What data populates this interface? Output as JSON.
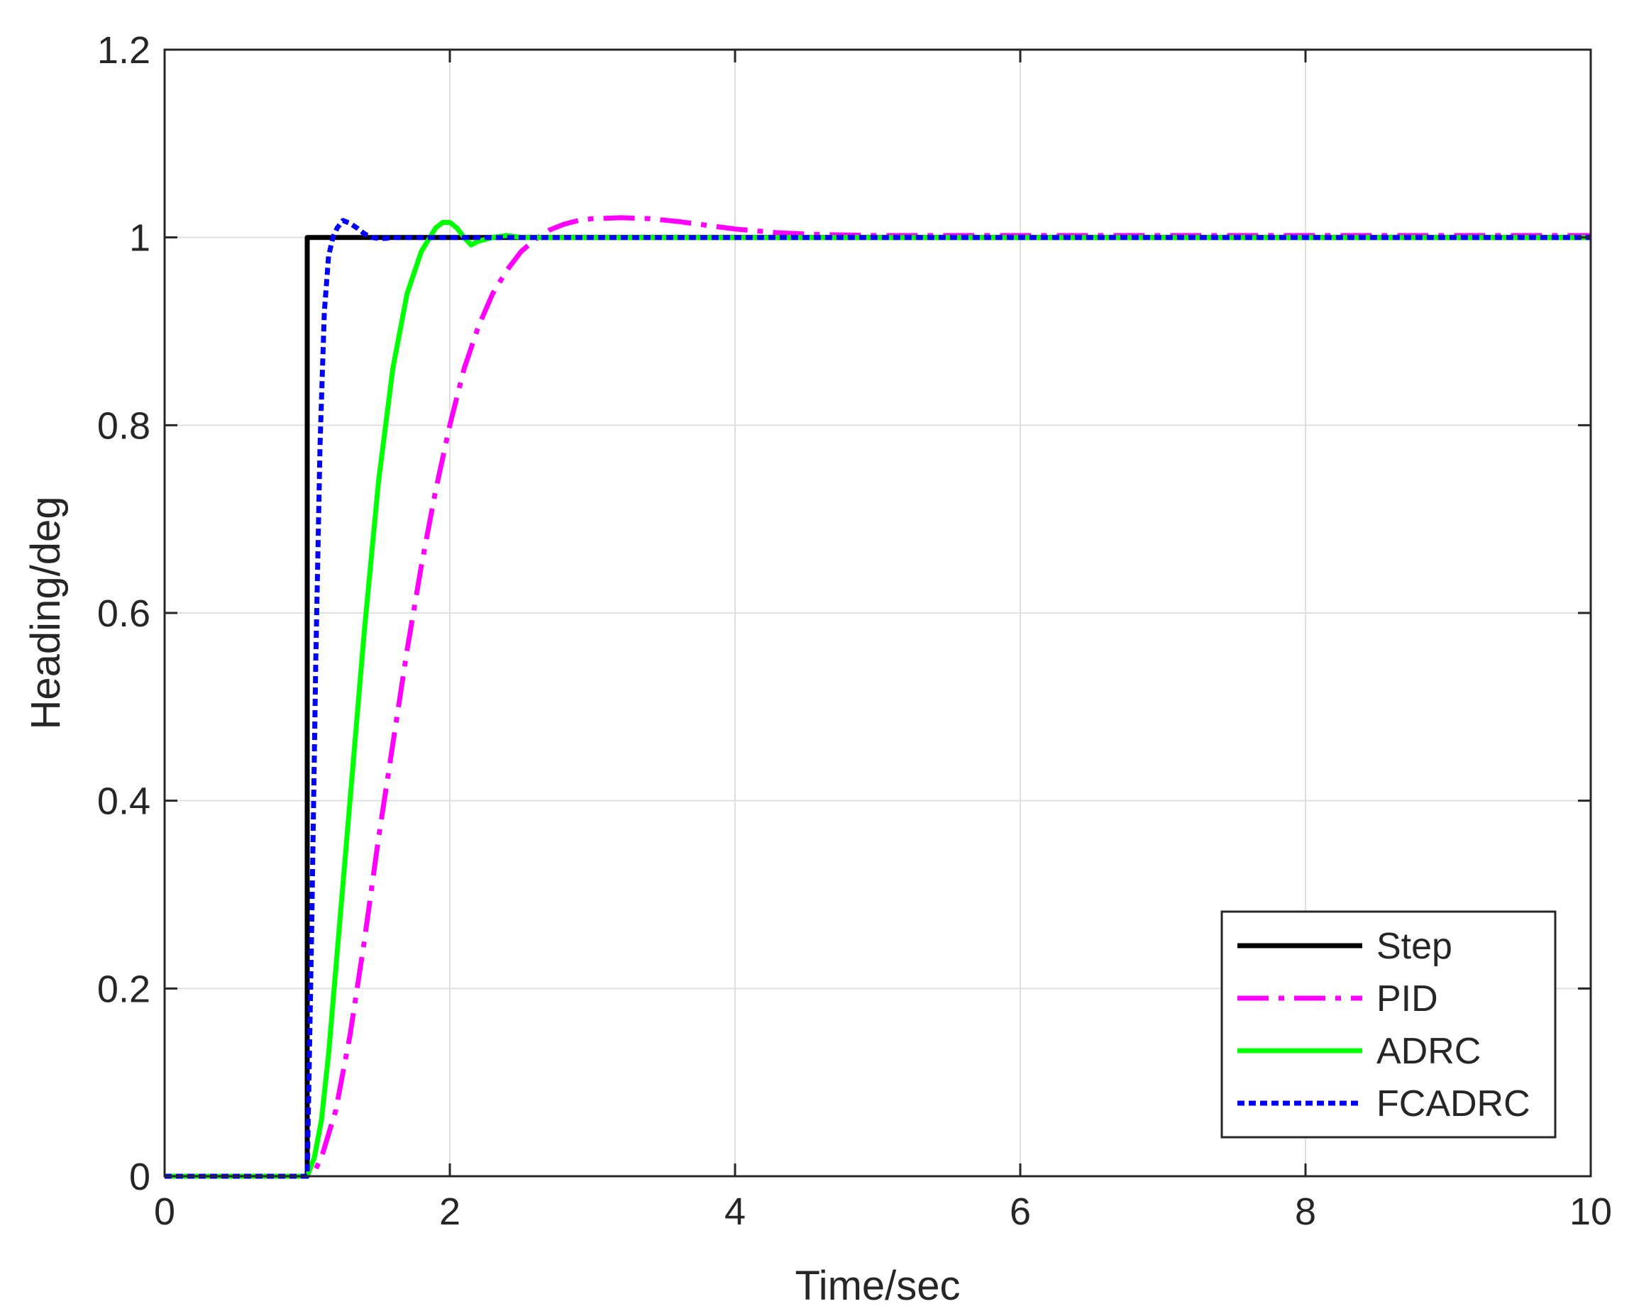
{
  "chart_data": {
    "type": "line",
    "title": "",
    "xlabel": "Time/sec",
    "ylabel": "Heading/deg",
    "xlim": [
      0,
      10
    ],
    "ylim": [
      0,
      1.2
    ],
    "xticks": [
      0,
      2,
      4,
      6,
      8,
      10
    ],
    "xtick_labels": [
      "0",
      "2",
      "4",
      "6",
      "8",
      "10"
    ],
    "yticks": [
      0,
      0.2,
      0.4,
      0.6,
      0.8,
      1.0,
      1.2
    ],
    "ytick_labels": [
      "0",
      "0.2",
      "0.4",
      "0.6",
      "0.8",
      "1",
      "1.2"
    ],
    "grid": true,
    "legend_position": "bottom-right",
    "series": [
      {
        "name": "Step",
        "color": "#000000",
        "style": "solid",
        "x": [
          0,
          1.0,
          1.0,
          10
        ],
        "y": [
          0,
          0,
          1.0,
          1.0
        ]
      },
      {
        "name": "PID",
        "color": "#ff00ff",
        "style": "dash-dot",
        "x": [
          0,
          1.0,
          1.05,
          1.1,
          1.2,
          1.3,
          1.4,
          1.5,
          1.6,
          1.7,
          1.8,
          1.9,
          2.0,
          2.1,
          2.2,
          2.3,
          2.4,
          2.5,
          2.6,
          2.7,
          2.8,
          2.9,
          3.0,
          3.2,
          3.4,
          3.6,
          3.8,
          4.0,
          4.3,
          4.6,
          5.0,
          6.0,
          8.0,
          10.0
        ],
        "y": [
          0,
          0,
          0.005,
          0.02,
          0.07,
          0.15,
          0.25,
          0.36,
          0.46,
          0.56,
          0.65,
          0.73,
          0.8,
          0.86,
          0.905,
          0.94,
          0.965,
          0.985,
          0.998,
          1.008,
          1.014,
          1.018,
          1.02,
          1.021,
          1.02,
          1.017,
          1.013,
          1.009,
          1.005,
          1.003,
          1.002,
          1.002,
          1.002,
          1.002
        ]
      },
      {
        "name": "ADRC",
        "color": "#00ff00",
        "style": "solid",
        "x": [
          0,
          1.0,
          1.05,
          1.1,
          1.15,
          1.2,
          1.3,
          1.4,
          1.5,
          1.6,
          1.7,
          1.8,
          1.9,
          1.95,
          2.0,
          2.05,
          2.1,
          2.15,
          2.2,
          2.3,
          2.4,
          2.5,
          2.7,
          3.0,
          4.0,
          6.0,
          10.0
        ],
        "y": [
          0,
          0,
          0.02,
          0.06,
          0.13,
          0.22,
          0.4,
          0.58,
          0.74,
          0.86,
          0.94,
          0.985,
          1.01,
          1.016,
          1.016,
          1.01,
          1.0,
          0.992,
          0.996,
          1.0,
          1.002,
          1.0,
          1.0,
          1.0,
          1.0,
          1.0,
          1.0
        ]
      },
      {
        "name": "FCADRC",
        "color": "#0000ff",
        "style": "dotted",
        "x": [
          0,
          1.0,
          1.03,
          1.06,
          1.09,
          1.12,
          1.15,
          1.18,
          1.21,
          1.25,
          1.3,
          1.35,
          1.4,
          1.45,
          1.5,
          1.55,
          1.6,
          1.7,
          1.8,
          2.0,
          3.0,
          6.0,
          10.0
        ],
        "y": [
          0,
          0,
          0.25,
          0.55,
          0.78,
          0.92,
          0.98,
          1.0,
          1.01,
          1.018,
          1.015,
          1.01,
          1.004,
          1.0,
          0.999,
          0.999,
          1.0,
          1.0,
          1.0,
          1.0,
          1.0,
          1.0,
          1.0
        ]
      }
    ]
  }
}
